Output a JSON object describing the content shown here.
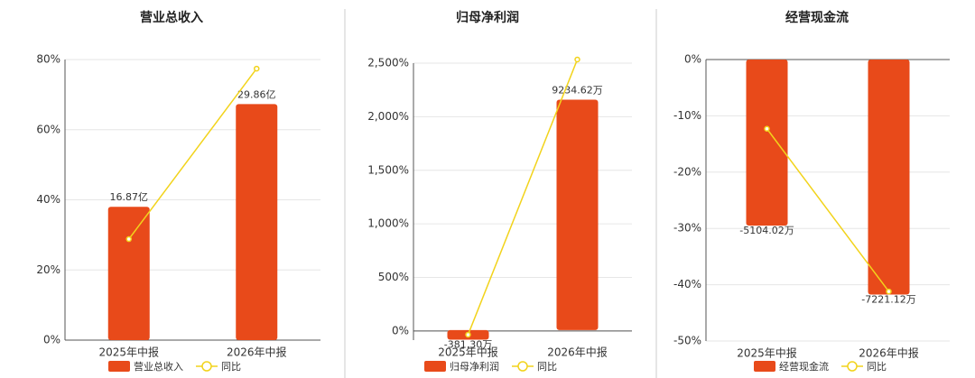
{
  "chart_data": [
    {
      "type": "combo",
      "title": "营业总收入",
      "categories": [
        "2025年中报",
        "2026年中报"
      ],
      "series": [
        {
          "name": "营业总收入",
          "type": "bar",
          "axis": "y2",
          "color": "#e84a1a",
          "values": [
            16.87,
            29.86
          ],
          "value_labels": [
            "16.87亿",
            "29.86亿"
          ]
        },
        {
          "name": "同比",
          "type": "line",
          "color": "#f2d31b",
          "values": [
            28.8,
            77.4
          ]
        }
      ],
      "ylim": [
        0,
        80
      ],
      "yticks": [
        {
          "value": 0,
          "label": "0%"
        },
        {
          "value": 20,
          "label": "20%"
        },
        {
          "value": 40,
          "label": "40%"
        },
        {
          "value": 60,
          "label": "60%"
        },
        {
          "value": 80,
          "label": "80%"
        }
      ],
      "y2lim": [
        0,
        35.5
      ],
      "grid": true
    },
    {
      "type": "combo",
      "title": "归母净利润",
      "categories": [
        "2025年中报",
        "2026年中报"
      ],
      "series": [
        {
          "name": "归母净利润",
          "type": "bar",
          "axis": "y2",
          "color": "#e84a1a",
          "values": [
            -381.3,
            9234.62
          ],
          "value_labels": [
            "-381.30万",
            "9234.62万"
          ]
        },
        {
          "name": "同比",
          "type": "line",
          "color": "#f2d31b",
          "values": [
            -34,
            2534
          ]
        }
      ],
      "ylim": [
        -85,
        2500
      ],
      "yticks": [
        {
          "value": 0,
          "label": "0%"
        },
        {
          "value": 500,
          "label": "500%"
        },
        {
          "value": 1000,
          "label": "1,000%"
        },
        {
          "value": 1500,
          "label": "1,500%"
        },
        {
          "value": 2000,
          "label": "2,000%"
        },
        {
          "value": 2500,
          "label": "2,500%"
        }
      ],
      "y2lim": [
        -400,
        10700
      ],
      "grid": true
    },
    {
      "type": "combo",
      "title": "经营现金流",
      "categories": [
        "2025年中报",
        "2026年中报"
      ],
      "series": [
        {
          "name": "经营现金流",
          "type": "bar",
          "axis": "y2",
          "color": "#e84a1a",
          "values": [
            -5104.02,
            -7221.12
          ],
          "value_labels": [
            "-5104.02万",
            "-7221.12万"
          ]
        },
        {
          "name": "同比",
          "type": "line",
          "color": "#f2d31b",
          "values": [
            -12.3,
            -41.2
          ]
        }
      ],
      "ylim": [
        -50,
        0
      ],
      "yticks": [
        {
          "value": 0,
          "label": "0%"
        },
        {
          "value": -10,
          "label": "-10%"
        },
        {
          "value": -20,
          "label": "-20%"
        },
        {
          "value": -30,
          "label": "-30%"
        },
        {
          "value": -40,
          "label": "-40%"
        },
        {
          "value": -50,
          "label": "-50%"
        }
      ],
      "y2lim": [
        -8650,
        0
      ],
      "grid": true
    }
  ]
}
